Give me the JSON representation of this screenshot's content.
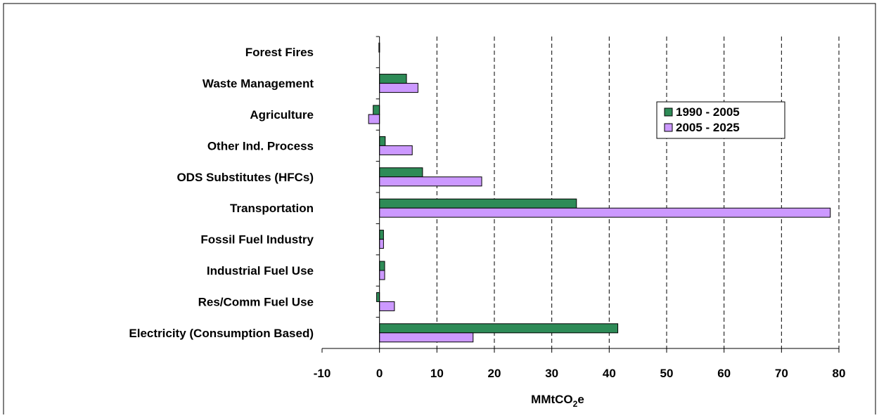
{
  "chart_data": {
    "type": "bar",
    "orientation": "horizontal",
    "title": "",
    "xlabel": "MMtCO2e",
    "xlabel_main": "MMtCO",
    "xlabel_sub": "2",
    "xlabel_suffix": "e",
    "ylabel": "",
    "xlim": [
      -10,
      80
    ],
    "xticks": [
      -10,
      0,
      10,
      20,
      30,
      40,
      50,
      60,
      70,
      80
    ],
    "grid": "vertical dashed",
    "legend_position": "top-right",
    "categories": [
      "Electricity (Consumption Based)",
      "Res/Comm Fuel Use",
      "Industrial Fuel Use",
      "Fossil Fuel Industry",
      "Transportation",
      "ODS Substitutes (HFCs)",
      "Other Ind. Process",
      "Agriculture",
      "Waste Management",
      "Forest Fires"
    ],
    "series": [
      {
        "name": "1990 - 2005",
        "color": "#2e8b57",
        "values": [
          41.5,
          -0.5,
          0.9,
          0.7,
          34.3,
          7.5,
          1.0,
          -1.1,
          4.7,
          -0.1
        ]
      },
      {
        "name": "2005 - 2025",
        "color": "#cc99ff",
        "values": [
          16.3,
          2.6,
          0.9,
          0.7,
          78.5,
          17.8,
          5.7,
          -1.9,
          6.7,
          0
        ]
      }
    ]
  }
}
